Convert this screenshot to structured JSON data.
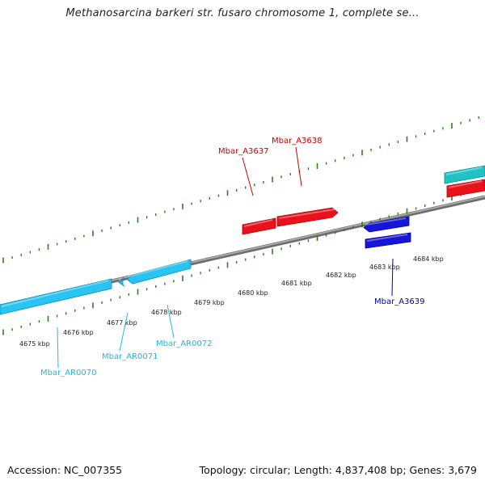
{
  "title": "Methanosarcina barkeri str. fusaro chromosome 1, complete se...",
  "footer": {
    "accession": "Accession: NC_007355",
    "summary": "Topology: circular; Length: 4,837,408 bp; Genes: 3,679"
  },
  "colors": {
    "backbone": "#8a8a8a",
    "ticks": "#2e7d1f",
    "red_gene": "#e8121c",
    "red_label": "#cc0000",
    "blue_gene": "#1616d6",
    "blue_label": "#0000b4",
    "lightblue_gene": "#29c4f2",
    "lightblue_label": "#21b8e0",
    "teal_gene": "#20c2c6"
  },
  "tick_labels": [
    "4675 kbp",
    "4676 kbp",
    "4677 kbp",
    "4678 kbp",
    "4679 kbp",
    "4680 kbp",
    "4681 kbp",
    "4682 kbp",
    "4683 kbp",
    "4684 kbp"
  ],
  "genes": [
    {
      "id": "Mbar_AR0070",
      "color_key": "lightblue"
    },
    {
      "id": "Mbar_AR0071",
      "color_key": "lightblue"
    },
    {
      "id": "Mbar_AR0072",
      "color_key": "lightblue"
    },
    {
      "id": "Mbar_A3637",
      "color_key": "red"
    },
    {
      "id": "Mbar_A3638",
      "color_key": "red"
    },
    {
      "id": "Mbar_A3639",
      "color_key": "blue"
    }
  ]
}
